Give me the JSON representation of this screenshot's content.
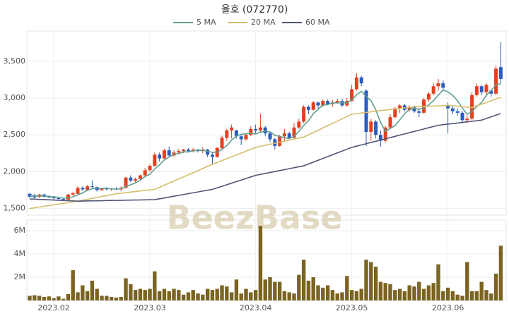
{
  "chart_data": [
    {
      "type": "candlestick",
      "title": "율호 (072770)",
      "watermark": "BeezBase",
      "categories": [
        null,
        null,
        null,
        null,
        null,
        "2023.02",
        null,
        null,
        null,
        null,
        null,
        null,
        null,
        null,
        null,
        null,
        null,
        null,
        null,
        null,
        null,
        null,
        null,
        null,
        null,
        "2023.03",
        null,
        null,
        null,
        null,
        null,
        null,
        null,
        null,
        null,
        null,
        null,
        null,
        null,
        null,
        null,
        null,
        null,
        null,
        null,
        null,
        null,
        "2023.04",
        null,
        null,
        null,
        null,
        null,
        null,
        null,
        null,
        null,
        null,
        null,
        null,
        null,
        null,
        null,
        null,
        null,
        null,
        null,
        "2023.05",
        null,
        null,
        null,
        null,
        null,
        null,
        null,
        null,
        null,
        null,
        null,
        null,
        null,
        null,
        null,
        null,
        null,
        null,
        null,
        "2023.06",
        null,
        null,
        null,
        null,
        null,
        null,
        null,
        null,
        null,
        null,
        null
      ],
      "open": [
        1700,
        1680,
        1660,
        1690,
        1670,
        1650,
        1640,
        1630,
        1620,
        1690,
        1700,
        1780,
        1750,
        1800,
        1790,
        1750,
        1770,
        1760,
        1770,
        1760,
        1780,
        1920,
        1880,
        1900,
        1950,
        2020,
        2080,
        2230,
        2180,
        2290,
        2220,
        2260,
        2280,
        2300,
        2280,
        2300,
        2280,
        2300,
        2230,
        2200,
        2320,
        2460,
        2560,
        2560,
        2480,
        2440,
        2500,
        2580,
        2560,
        2600,
        2520,
        2440,
        2350,
        2480,
        2520,
        2460,
        2600,
        2680,
        2880,
        2840,
        2940,
        2900,
        2960,
        2920,
        2940,
        2960,
        2900,
        2960,
        3120,
        3280,
        3100,
        2540,
        2680,
        2500,
        2420,
        2600,
        2740,
        2860,
        2900,
        2840,
        2880,
        2820,
        2800,
        2980,
        3060,
        3160,
        3200,
        2900,
        2860,
        2820,
        2800,
        2700,
        2720,
        3040,
        3160,
        3080,
        3100,
        3060,
        3420
      ],
      "high": [
        1710,
        1700,
        1700,
        1700,
        1680,
        1660,
        1650,
        1640,
        1700,
        1720,
        1800,
        1800,
        1820,
        1880,
        1800,
        1780,
        1790,
        1780,
        1790,
        1800,
        1930,
        1950,
        1920,
        1960,
        2050,
        2100,
        2260,
        2260,
        2310,
        2340,
        2290,
        2310,
        2310,
        2320,
        2320,
        2310,
        2330,
        2310,
        2260,
        2340,
        2490,
        2580,
        2640,
        2570,
        2500,
        2520,
        2620,
        2640,
        2790,
        2620,
        2540,
        2460,
        2500,
        2580,
        2540,
        2660,
        2720,
        2900,
        2900,
        2960,
        2950,
        2980,
        2980,
        2970,
        2990,
        2990,
        3000,
        3180,
        3340,
        3300,
        3120,
        2720,
        2700,
        2560,
        2620,
        2780,
        2880,
        2920,
        2920,
        2900,
        2900,
        2860,
        3000,
        3080,
        3200,
        3260,
        3240,
        2940,
        2900,
        2860,
        2820,
        2760,
        3080,
        3200,
        3180,
        3200,
        3120,
        3440,
        3760
      ],
      "low": [
        1640,
        1640,
        1640,
        1650,
        1640,
        1620,
        1620,
        1600,
        1610,
        1670,
        1690,
        1740,
        1740,
        1780,
        1730,
        1740,
        1750,
        1740,
        1750,
        1740,
        1770,
        1860,
        1850,
        1880,
        1940,
        2000,
        2070,
        2140,
        2170,
        2200,
        2200,
        2240,
        2250,
        2260,
        2260,
        2260,
        2250,
        2200,
        2100,
        2190,
        2300,
        2420,
        2450,
        2450,
        2360,
        2420,
        2480,
        2520,
        2540,
        2480,
        2400,
        2300,
        2340,
        2420,
        2440,
        2450,
        2580,
        2660,
        2780,
        2830,
        2860,
        2880,
        2900,
        2880,
        2920,
        2880,
        2880,
        2950,
        3100,
        3160,
        2350,
        2420,
        2450,
        2340,
        2400,
        2580,
        2720,
        2800,
        2820,
        2820,
        2800,
        2740,
        2790,
        2950,
        3040,
        3100,
        3100,
        2520,
        2780,
        2760,
        2660,
        2660,
        2700,
        3020,
        3040,
        3040,
        3020,
        3040,
        3200
      ],
      "close": [
        1660,
        1650,
        1690,
        1660,
        1650,
        1640,
        1630,
        1620,
        1690,
        1710,
        1780,
        1760,
        1800,
        1790,
        1750,
        1770,
        1760,
        1770,
        1760,
        1780,
        1920,
        1880,
        1900,
        1950,
        2020,
        2080,
        2230,
        2180,
        2290,
        2220,
        2260,
        2280,
        2300,
        2280,
        2300,
        2280,
        2300,
        2230,
        2200,
        2320,
        2460,
        2560,
        2600,
        2480,
        2440,
        2500,
        2580,
        2560,
        2600,
        2520,
        2440,
        2350,
        2480,
        2520,
        2460,
        2600,
        2680,
        2880,
        2840,
        2940,
        2900,
        2960,
        2920,
        2940,
        2960,
        2900,
        2960,
        3120,
        3280,
        3200,
        2540,
        2680,
        2500,
        2420,
        2600,
        2740,
        2860,
        2900,
        2840,
        2880,
        2820,
        2800,
        2980,
        3060,
        3160,
        3200,
        3140,
        2860,
        2820,
        2800,
        2700,
        2720,
        3040,
        3160,
        3080,
        3180,
        3060,
        3400,
        3260
      ],
      "up_color": "#e3401f",
      "down_color": "#2b5cbf",
      "series": [
        {
          "name": "5 MA",
          "color": "#5f9f90",
          "values": [
            1670,
            1670,
            1670,
            1670,
            1662,
            1658,
            1654,
            1640,
            1646,
            1658,
            1686,
            1712,
            1748,
            1768,
            1776,
            1774,
            1774,
            1768,
            1762,
            1768,
            1798,
            1822,
            1848,
            1886,
            1934,
            1966,
            2036,
            2092,
            2160,
            2200,
            2236,
            2246,
            2270,
            2268,
            2284,
            2288,
            2292,
            2278,
            2262,
            2266,
            2302,
            2354,
            2428,
            2484,
            2508,
            2516,
            2520,
            2512,
            2536,
            2552,
            2540,
            2494,
            2478,
            2462,
            2450,
            2482,
            2548,
            2628,
            2692,
            2788,
            2848,
            2904,
            2912,
            2932,
            2936,
            2936,
            2936,
            2976,
            3044,
            3092,
            3020,
            2964,
            2840,
            2668,
            2548,
            2588,
            2624,
            2704,
            2788,
            2844,
            2860,
            2848,
            2864,
            2908,
            2964,
            3040,
            3108,
            3084,
            3036,
            2964,
            2864,
            2780,
            2816,
            2884,
            2940,
            3036,
            3104,
            3176,
            3196
          ]
        },
        {
          "name": "20 MA",
          "color": "#d6bd6c",
          "values": [
            1500,
            1510,
            1520,
            1530,
            1540,
            1550,
            1560,
            1570,
            1580,
            1590,
            1600,
            1613,
            1625,
            1638,
            1650,
            1663,
            1675,
            1688,
            1700,
            1708,
            1715,
            1723,
            1730,
            1738,
            1745,
            1753,
            1760,
            1788,
            1817,
            1845,
            1873,
            1902,
            1930,
            1958,
            1987,
            2015,
            2043,
            2072,
            2100,
            2126,
            2151,
            2177,
            2202,
            2228,
            2253,
            2279,
            2304,
            2330,
            2344,
            2358,
            2372,
            2386,
            2400,
            2414,
            2428,
            2442,
            2456,
            2470,
            2501,
            2532,
            2563,
            2594,
            2625,
            2656,
            2687,
            2718,
            2749,
            2780,
            2788,
            2797,
            2805,
            2813,
            2822,
            2830,
            2837,
            2844,
            2851,
            2859,
            2866,
            2873,
            2880,
            2883,
            2886,
            2889,
            2891,
            2894,
            2897,
            2900,
            2894,
            2888,
            2882,
            2876,
            2870,
            2893,
            2917,
            2940,
            2963,
            2987,
            3010
          ]
        },
        {
          "name": "60 MA",
          "color": "#4e5674",
          "values": [
            1630,
            1627,
            1624,
            1621,
            1618,
            1615,
            1612,
            1609,
            1606,
            1603,
            1600,
            1601,
            1603,
            1604,
            1605,
            1606,
            1608,
            1609,
            1610,
            1611,
            1613,
            1614,
            1615,
            1616,
            1618,
            1619,
            1620,
            1632,
            1643,
            1655,
            1667,
            1678,
            1690,
            1702,
            1713,
            1725,
            1737,
            1748,
            1760,
            1781,
            1802,
            1823,
            1844,
            1866,
            1887,
            1908,
            1929,
            1950,
            1963,
            1976,
            1989,
            2002,
            2015,
            2028,
            2041,
            2054,
            2067,
            2080,
            2105,
            2130,
            2155,
            2180,
            2205,
            2230,
            2255,
            2280,
            2305,
            2330,
            2347,
            2363,
            2380,
            2397,
            2413,
            2430,
            2447,
            2463,
            2480,
            2497,
            2513,
            2530,
            2547,
            2563,
            2580,
            2597,
            2613,
            2630,
            2638,
            2646,
            2653,
            2661,
            2669,
            2677,
            2684,
            2692,
            2700,
            2723,
            2745,
            2768,
            2790
          ]
        }
      ],
      "ylim": [
        1410,
        3910
      ],
      "yticks": [
        {
          "value": 1500,
          "label": "1,500"
        },
        {
          "value": 2000,
          "label": "2,000"
        },
        {
          "value": 2500,
          "label": "2,500"
        },
        {
          "value": 3000,
          "label": "3,000"
        },
        {
          "value": 3500,
          "label": "3,500"
        }
      ],
      "grid": true
    },
    {
      "type": "bar",
      "color": "#7b6422",
      "values": [
        400000,
        450000,
        400000,
        300000,
        350000,
        200000,
        350000,
        150000,
        550000,
        2600000,
        700000,
        1300000,
        800000,
        1700000,
        1000000,
        400000,
        400000,
        300000,
        250000,
        300000,
        1900000,
        1400000,
        900000,
        1000000,
        900000,
        1000000,
        2500000,
        800000,
        1000000,
        800000,
        1000000,
        900000,
        500000,
        700000,
        900000,
        600000,
        500000,
        1000000,
        900000,
        1000000,
        1300000,
        1200000,
        700000,
        1800000,
        600000,
        1000000,
        700000,
        900000,
        6400000,
        1800000,
        2000000,
        1600000,
        1600000,
        800000,
        700000,
        600000,
        2200000,
        3500000,
        1700000,
        2000000,
        1300000,
        1100000,
        1300000,
        900000,
        600000,
        700000,
        2100000,
        900000,
        800000,
        1000000,
        3500000,
        3300000,
        2900000,
        1600000,
        1500000,
        1400000,
        900000,
        1000000,
        800000,
        1300000,
        1200000,
        1600000,
        1000000,
        1300000,
        1500000,
        3100000,
        800000,
        1100000,
        800000,
        500000,
        400000,
        3300000,
        800000,
        800000,
        1600000,
        900000,
        600000,
        2300000,
        4700000
      ],
      "ylim": [
        0,
        6900000
      ],
      "yticks": [
        {
          "value": 2000000,
          "label": "2M"
        },
        {
          "value": 4000000,
          "label": "4M"
        },
        {
          "value": 6000000,
          "label": "6M"
        }
      ],
      "grid": true
    }
  ]
}
